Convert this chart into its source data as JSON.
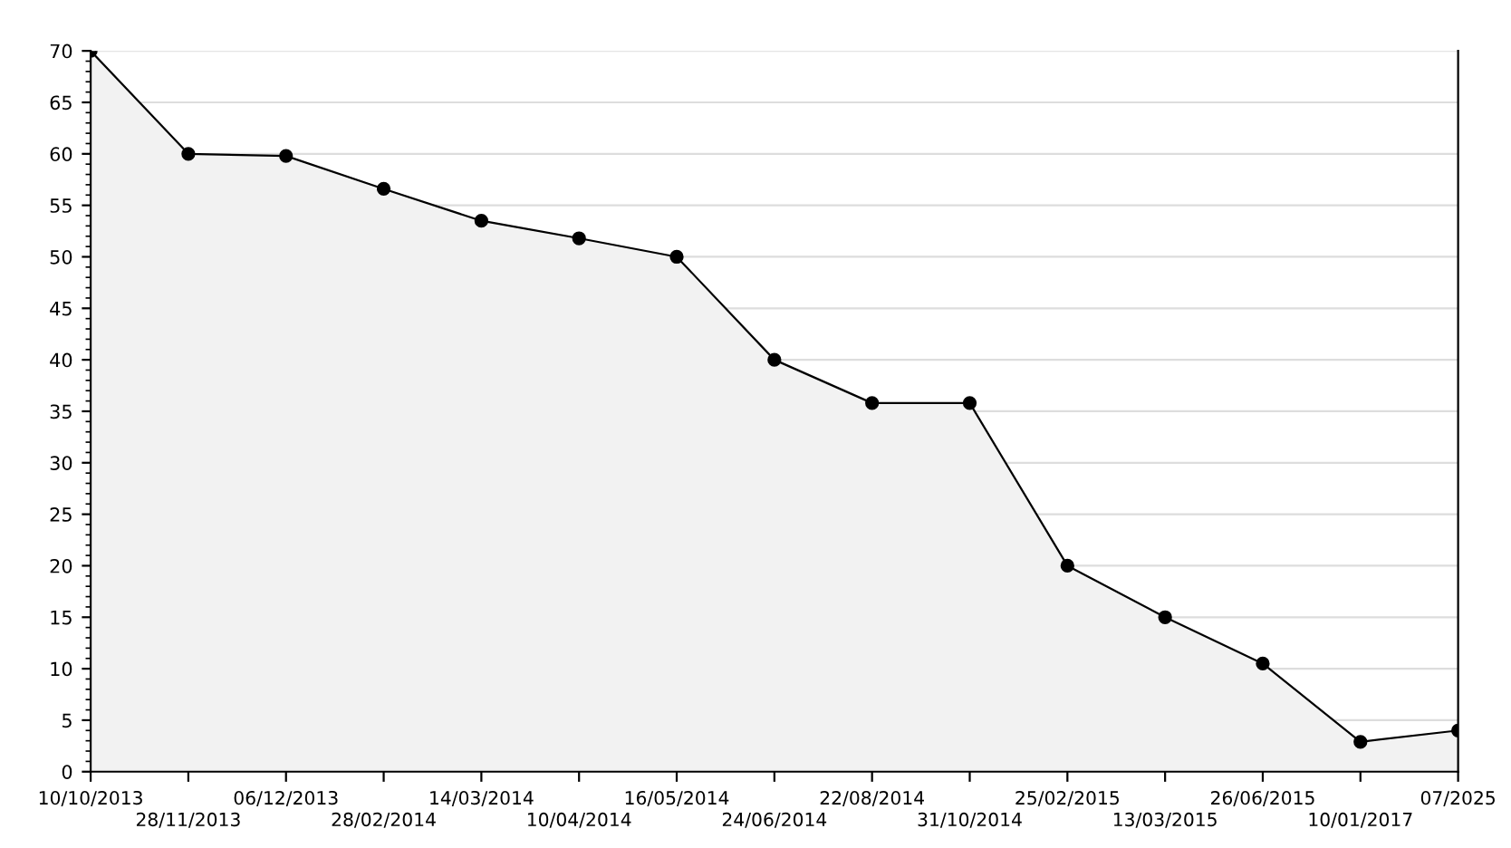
{
  "chart_data": {
    "type": "area",
    "categories": [
      "10/10/2013",
      "28/11/2013",
      "06/12/2013",
      "28/02/2014",
      "14/03/2014",
      "10/04/2014",
      "16/05/2014",
      "24/06/2014",
      "22/08/2014",
      "31/10/2014",
      "25/02/2015",
      "13/03/2015",
      "26/06/2015",
      "10/01/2017",
      "07/2025"
    ],
    "series": [
      {
        "color": "#000000",
        "values": [
          70,
          60,
          59.8,
          56.6,
          53.5,
          51.8,
          50,
          40,
          35.8,
          35.8,
          20,
          15,
          10.5,
          2.9,
          4
        ]
      }
    ],
    "ylim": [
      0,
      70
    ],
    "yticks": [
      0,
      5,
      10,
      15,
      20,
      25,
      30,
      35,
      40,
      45,
      50,
      55,
      60,
      65,
      70
    ],
    "grid": "y",
    "marker": "circle",
    "line_style": "solid"
  }
}
